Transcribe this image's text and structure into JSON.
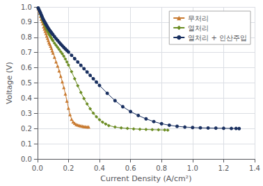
{
  "chart_data": {
    "type": "line",
    "xlabel": "Current Density (A/cm²)",
    "ylabel": "Voltage (V)",
    "xlim": [
      0,
      1.4
    ],
    "ylim": [
      0,
      1.0
    ],
    "xticks": [
      {
        "value": 0,
        "label": "0.0"
      },
      0.2,
      0.4,
      0.6,
      0.8,
      {
        "value": 1.0,
        "label": "1.0"
      },
      1.2,
      1.4
    ],
    "yticks": [
      {
        "value": 0,
        "label": "0.0"
      },
      0.1,
      0.2,
      0.3,
      0.4,
      0.5,
      0.6,
      0.7,
      0.8,
      0.9,
      {
        "value": 1.0,
        "label": "1.0"
      }
    ],
    "grid": true,
    "legend": "upper right",
    "series": [
      {
        "name": "무처리",
        "color": "#C87A30",
        "marker": "triangle",
        "x": [
          0.005,
          0.01,
          0.015,
          0.02,
          0.025,
          0.03,
          0.035,
          0.04,
          0.045,
          0.05,
          0.055,
          0.06,
          0.065,
          0.07,
          0.075,
          0.08,
          0.085,
          0.09,
          0.095,
          0.1,
          0.11,
          0.12,
          0.13,
          0.14,
          0.15,
          0.16,
          0.17,
          0.18,
          0.19,
          0.2,
          0.21,
          0.22,
          0.23,
          0.24,
          0.25,
          0.26,
          0.27,
          0.28,
          0.29,
          0.3,
          0.31,
          0.32,
          0.33
        ],
        "values": [
          0.99,
          0.975,
          0.96,
          0.94,
          0.92,
          0.905,
          0.89,
          0.87,
          0.855,
          0.84,
          0.825,
          0.81,
          0.795,
          0.78,
          0.765,
          0.755,
          0.742,
          0.728,
          0.712,
          0.698,
          0.67,
          0.64,
          0.612,
          0.58,
          0.545,
          0.508,
          0.47,
          0.428,
          0.382,
          0.335,
          0.292,
          0.262,
          0.245,
          0.235,
          0.228,
          0.224,
          0.221,
          0.218,
          0.216,
          0.214,
          0.213,
          0.212,
          0.211
        ]
      },
      {
        "name": "열처리",
        "color": "#6B8C23",
        "marker": "diamond",
        "x": [
          0.005,
          0.01,
          0.015,
          0.02,
          0.025,
          0.03,
          0.035,
          0.04,
          0.045,
          0.05,
          0.055,
          0.06,
          0.065,
          0.07,
          0.075,
          0.08,
          0.085,
          0.09,
          0.095,
          0.1,
          0.11,
          0.12,
          0.13,
          0.14,
          0.15,
          0.16,
          0.17,
          0.18,
          0.19,
          0.2,
          0.22,
          0.24,
          0.26,
          0.28,
          0.3,
          0.32,
          0.34,
          0.36,
          0.38,
          0.4,
          0.42,
          0.44,
          0.46,
          0.5,
          0.54,
          0.58,
          0.62,
          0.66,
          0.7,
          0.74,
          0.78,
          0.82,
          0.84
        ],
        "values": [
          0.992,
          0.98,
          0.968,
          0.952,
          0.938,
          0.922,
          0.91,
          0.898,
          0.886,
          0.874,
          0.862,
          0.85,
          0.84,
          0.83,
          0.82,
          0.812,
          0.803,
          0.795,
          0.786,
          0.778,
          0.762,
          0.748,
          0.734,
          0.72,
          0.706,
          0.692,
          0.676,
          0.658,
          0.638,
          0.618,
          0.574,
          0.528,
          0.482,
          0.438,
          0.398,
          0.362,
          0.33,
          0.302,
          0.278,
          0.258,
          0.242,
          0.23,
          0.22,
          0.21,
          0.205,
          0.201,
          0.198,
          0.196,
          0.194,
          0.193,
          0.192,
          0.191,
          0.19
        ]
      },
      {
        "name": "열처리 + 인산주입",
        "color": "#1A3060",
        "marker": "circle",
        "x": [
          0.005,
          0.01,
          0.015,
          0.02,
          0.025,
          0.03,
          0.035,
          0.04,
          0.045,
          0.05,
          0.055,
          0.06,
          0.065,
          0.07,
          0.075,
          0.08,
          0.085,
          0.09,
          0.095,
          0.1,
          0.11,
          0.12,
          0.13,
          0.14,
          0.15,
          0.16,
          0.17,
          0.18,
          0.19,
          0.2,
          0.22,
          0.24,
          0.26,
          0.28,
          0.3,
          0.32,
          0.34,
          0.36,
          0.38,
          0.4,
          0.45,
          0.5,
          0.55,
          0.6,
          0.65,
          0.7,
          0.75,
          0.8,
          0.85,
          0.9,
          0.95,
          1.0,
          1.05,
          1.1,
          1.15,
          1.2,
          1.25,
          1.28,
          1.3
        ],
        "values": [
          0.993,
          0.982,
          0.971,
          0.96,
          0.948,
          0.936,
          0.924,
          0.914,
          0.904,
          0.895,
          0.886,
          0.877,
          0.868,
          0.86,
          0.852,
          0.845,
          0.838,
          0.831,
          0.824,
          0.818,
          0.805,
          0.792,
          0.78,
          0.768,
          0.756,
          0.745,
          0.734,
          0.724,
          0.714,
          0.704,
          0.682,
          0.66,
          0.638,
          0.616,
          0.594,
          0.572,
          0.55,
          0.528,
          0.506,
          0.484,
          0.432,
          0.384,
          0.344,
          0.312,
          0.286,
          0.264,
          0.246,
          0.232,
          0.222,
          0.215,
          0.21,
          0.207,
          0.205,
          0.204,
          0.203,
          0.202,
          0.201,
          0.201,
          0.2
        ]
      }
    ]
  }
}
